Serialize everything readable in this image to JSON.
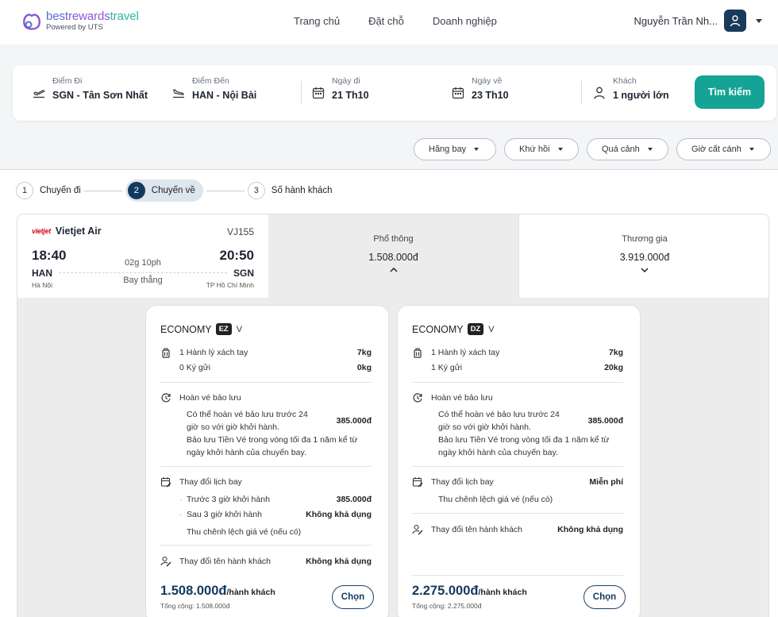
{
  "brand": {
    "name_part1": "best",
    "name_part2": "rewards",
    "name_part3": "travel",
    "tagline": "Powered by UTS"
  },
  "nav": {
    "items": [
      "Trang chủ",
      "Đặt chỗ",
      "Doanh nghiệp"
    ]
  },
  "user": {
    "name": "Nguyễn Trần Nh..."
  },
  "search": {
    "origin": {
      "label": "Điểm Đi",
      "value": "SGN - Tân Sơn Nhất"
    },
    "destination": {
      "label": "Điểm Đến",
      "value": "HAN - Nội Bài"
    },
    "depart": {
      "label": "Ngày đi",
      "value": "21 Th10"
    },
    "return": {
      "label": "Ngày về",
      "value": "23 Th10"
    },
    "passengers": {
      "label": "Khách",
      "value": "1 người lớn"
    },
    "button": "Tìm kiếm"
  },
  "filters": [
    "Hãng bay",
    "Khứ hồi",
    "Quá cảnh",
    "Giờ cất cánh"
  ],
  "steps": [
    {
      "num": "1",
      "label": "Chuyến đi"
    },
    {
      "num": "2",
      "label": "Chuyến về"
    },
    {
      "num": "3",
      "label": "Số hành khách"
    }
  ],
  "flight": {
    "airline_logo": "vietjet",
    "airline": "Vietjet Air",
    "code": "VJ155",
    "dep_time": "18:40",
    "arr_time": "20:50",
    "duration": "02g 10ph",
    "dep_code": "HAN",
    "arr_code": "SGN",
    "stops": "Bay thẳng",
    "dep_city": "Hà Nội",
    "arr_city": "TP Hồ Chí Minh"
  },
  "fares": [
    {
      "name": "Phổ thông",
      "price": "1.508.000đ"
    },
    {
      "name": "Thương gia",
      "price": "3.919.000đ"
    }
  ],
  "cards": [
    {
      "class": "ECONOMY",
      "badge": "EZ",
      "sub": "V",
      "carry_on": "1 Hành lý xách tay",
      "carry_on_kg": "7kg",
      "checked": "0 Ký gửi",
      "checked_kg": "0kg",
      "refund_title": "Hoàn vé bảo lưu",
      "refund_text": "Có thể hoàn vé bảo lưu trước 24 giờ so với giờ khởi hành.",
      "refund_price": "385.000đ",
      "refund_note": "Bảo lưu Tiền Vé trong vòng tối đa 1 năm kể từ ngày khởi hành của chuyến bay.",
      "change_title": "Thay đổi lịch bay",
      "change_before": "Trước 3 giờ khởi hành",
      "change_before_price": "385.000đ",
      "change_after": "Sau 3 giờ khởi hành",
      "change_after_price": "Không khả dụng",
      "change_note": "Thu chênh lệch giá vé (nếu có)",
      "name_change_title": "Thay đổi tên hành khách",
      "name_change_value": "Không khả dụng",
      "total": "1.508.000đ",
      "per": "/hành khách",
      "total_sum": "Tổng cộng: 1.508.000đ",
      "button": "Chọn"
    },
    {
      "class": "ECONOMY",
      "badge": "DZ",
      "sub": "V",
      "carry_on": "1 Hành lý xách tay",
      "carry_on_kg": "7kg",
      "checked": "1 Ký gửi",
      "checked_kg": "20kg",
      "refund_title": "Hoàn vé bảo lưu",
      "refund_text": "Có thể hoàn vé bảo lưu trước 24 giờ so với giờ khởi hành.",
      "refund_price": "385.000đ",
      "refund_note": "Bảo lưu Tiền Vé trong vòng tối đa 1 năm kể từ ngày khởi hành của chuyến bay.",
      "change_title": "Thay đổi lịch bay",
      "change_value": "Miễn phí",
      "change_note": "Thu chênh lệch giá vé (nếu có)",
      "name_change_title": "Thay đổi tên hành khách",
      "name_change_value": "Không khả dụng",
      "total": "2.275.000đ",
      "per": "/hành khách",
      "total_sum": "Tổng cộng: 2.275.000đ",
      "button": "Chọn"
    }
  ],
  "colors": {
    "accent": "#14a394",
    "navy": "#123a5e",
    "airline_red": "#d4121d"
  }
}
